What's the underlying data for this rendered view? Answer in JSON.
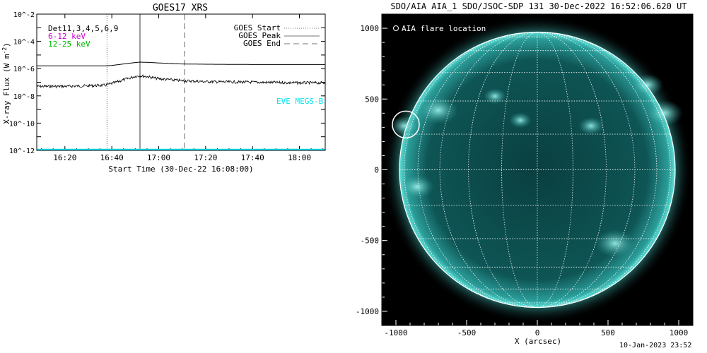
{
  "left_chart": {
    "title": "GOES17 XRS",
    "y_label": "X-ray Flux (W m",
    "y_label_sup": "-2",
    "y_label_close": ")",
    "x_label": "Start Time (30-Dec-22 16:08:00)",
    "legend_left": [
      {
        "text": "Det11,3,4,5,6,9",
        "color": "#000000"
      },
      {
        "text": "6-12 keV",
        "color": "#cc00cc"
      },
      {
        "text": "12-25 keV",
        "color": "#00bb00"
      }
    ],
    "legend_right": [
      {
        "text": "GOES Start",
        "style": "dotted"
      },
      {
        "text": "GOES Peak",
        "style": "solid"
      },
      {
        "text": "GOES End",
        "style": "dashed"
      }
    ],
    "eve_label": "EVE MEGS-B",
    "colors": {
      "eve": "#00e5ee",
      "markers": "#9a9a9a",
      "base": "#00e5ee"
    }
  },
  "right_chart": {
    "title": "SDO/AIA AIA_1 SDO/JSOC-SDP 131 30-Dec-2022 16:52:06.620 UT",
    "legend": "AIA flare location",
    "x_label": "X (arcsec)",
    "colors": {
      "disk": "#0d4b4b",
      "bright": "#4fd6cf",
      "grid": "#ffffff"
    }
  },
  "timestamp": "10-Jan-2023 23:52",
  "chart_data": [
    {
      "type": "line",
      "title": "GOES17 XRS",
      "xlabel": "Start Time (30-Dec-22 16:08:00)",
      "ylabel": "X-ray Flux (W m^-2)",
      "y_scale": "log",
      "xlim": [
        "16:08",
        "18:11"
      ],
      "ylim": [
        1e-12,
        0.01
      ],
      "x_ticks": [
        "16:20",
        "16:40",
        "17:00",
        "17:20",
        "17:40",
        "18:00"
      ],
      "y_ticks": [
        "10^-12",
        "10^-10",
        "10^-8",
        "10^-6",
        "10^-4",
        "10^-2"
      ],
      "series": [
        {
          "name": "Det11,3,4,5,6,9",
          "style": "line",
          "x": [
            "16:08",
            "16:20",
            "16:30",
            "16:37",
            "16:40",
            "16:45",
            "16:50",
            "16:52",
            "16:55",
            "17:00",
            "17:10",
            "17:20",
            "17:40",
            "18:00",
            "18:11"
          ],
          "y": [
            1.6e-06,
            1.6e-06,
            1.6e-06,
            1.6e-06,
            1.7e-06,
            2.2e-06,
            2.8e-06,
            3e-06,
            2.9e-06,
            2.6e-06,
            2.2e-06,
            2.1e-06,
            2e-06,
            2e-06,
            2e-06
          ]
        },
        {
          "name": "",
          "style": "noisy-line",
          "x": [
            "16:08",
            "16:20",
            "16:30",
            "16:37",
            "16:40",
            "16:45",
            "16:50",
            "16:52",
            "16:55",
            "17:00",
            "17:10",
            "17:20",
            "17:40",
            "18:00",
            "18:11"
          ],
          "y": [
            5e-08,
            5e-08,
            5.5e-08,
            6e-08,
            8e-08,
            1.5e-07,
            2.7e-07,
            3e-07,
            2.6e-07,
            1.8e-07,
            1.3e-07,
            1.1e-07,
            1e-07,
            9e-08,
            9e-08
          ]
        }
      ],
      "vertical_markers": [
        {
          "name": "GOES Start",
          "x": "16:38",
          "style": "dotted"
        },
        {
          "name": "GOES Peak",
          "x": "16:52",
          "style": "solid"
        },
        {
          "name": "GOES End",
          "x": "17:11",
          "style": "dashed"
        }
      ]
    },
    {
      "type": "heatmap",
      "title": "SDO/AIA AIA_1 SDO/JSOC-SDP 131 30-Dec-2022 16:52:06.620 UT",
      "xlabel": "X (arcsec)",
      "ylabel": "",
      "xlim": [
        -1100,
        1100
      ],
      "ylim": [
        -1100,
        1100
      ],
      "x_ticks": [
        -1000,
        -500,
        0,
        500,
        1000
      ],
      "y_ticks": [
        -1000,
        -500,
        0,
        500,
        1000
      ],
      "solar_radius_arcsec": 975,
      "flare_location": {
        "x": -930,
        "y": 320,
        "radius": 95,
        "label": "AIA flare location"
      }
    }
  ]
}
